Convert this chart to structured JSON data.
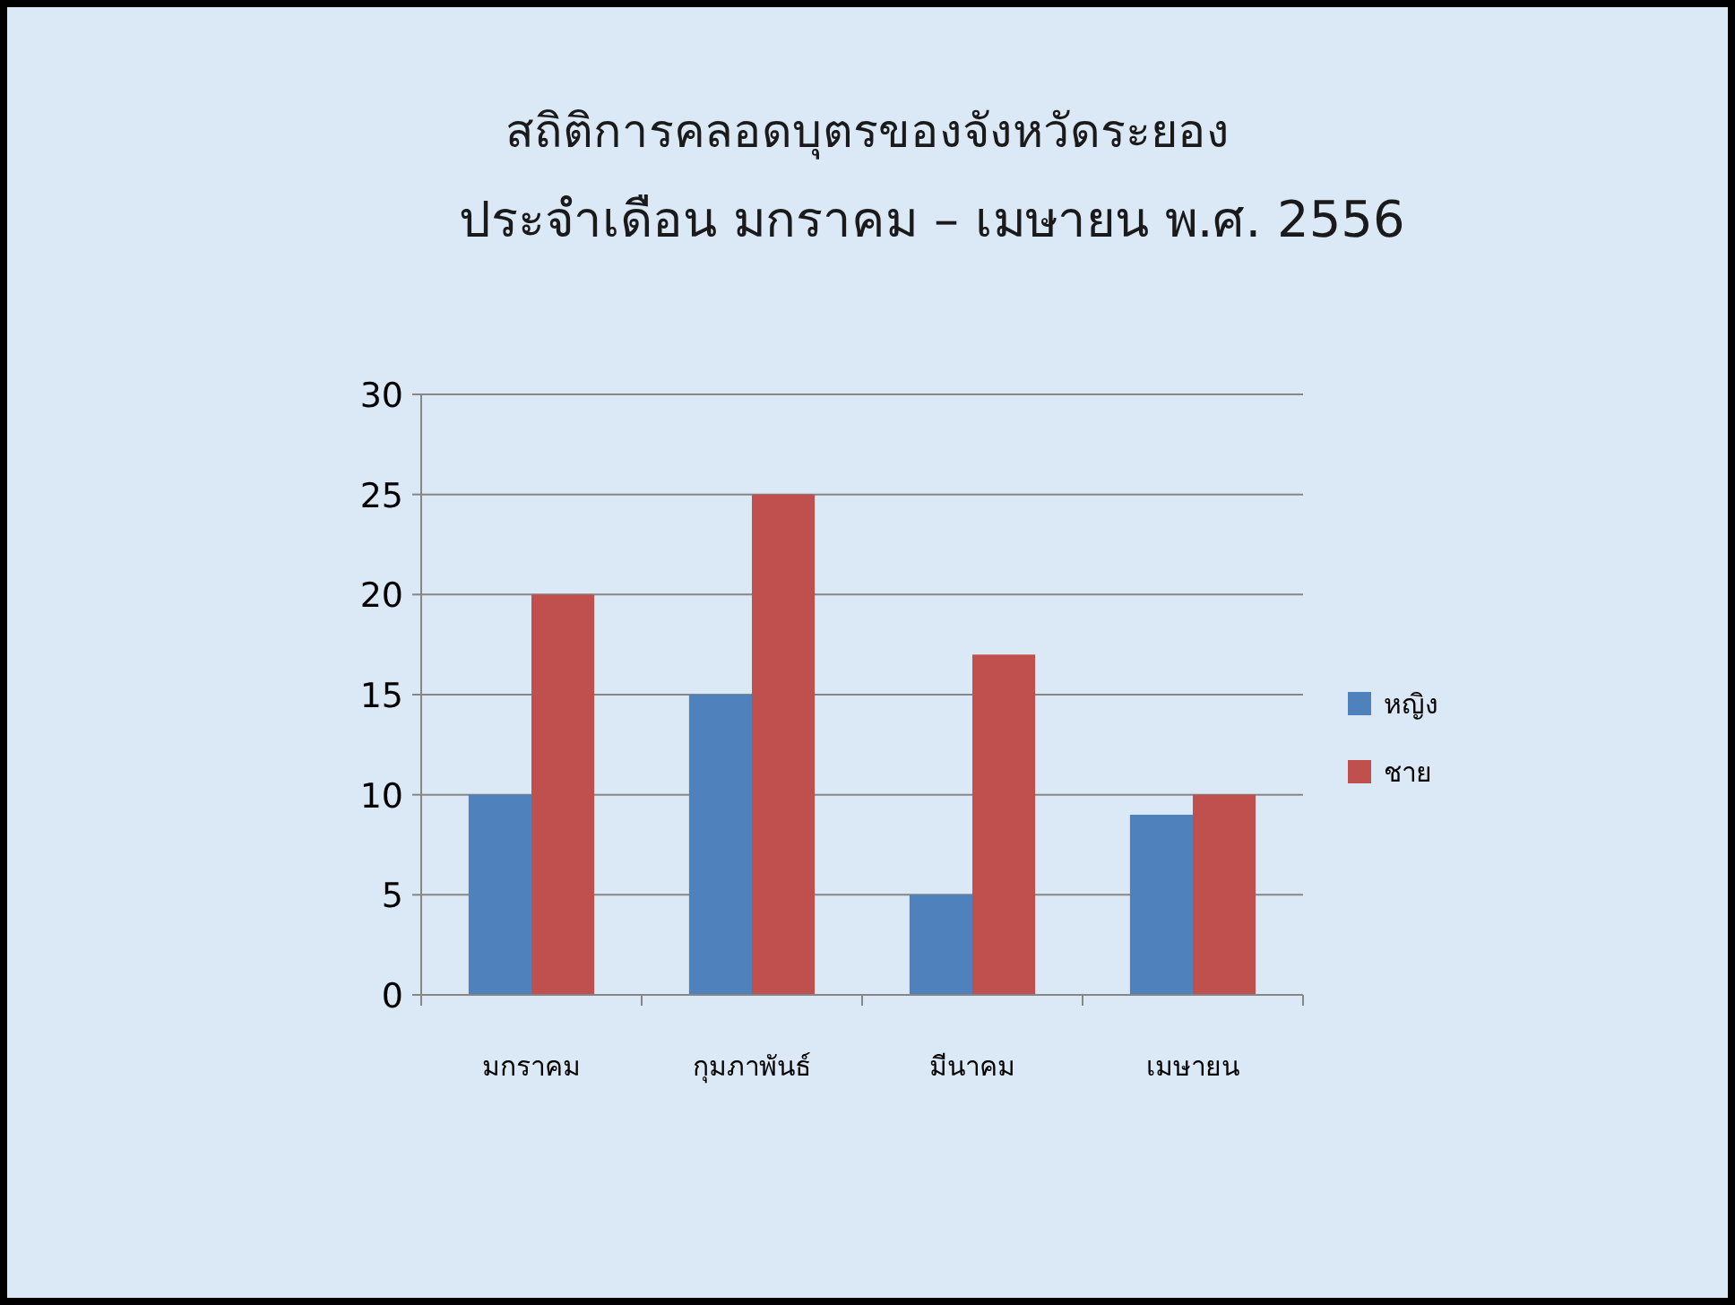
{
  "chart_data": {
    "type": "bar",
    "title": "สถิติการคลอดบุตรของจังหวัดระยอง",
    "subtitle": "ประจำเดือน มกราคม – เมษายน พ.ศ. 2556",
    "categories": [
      "มกราคม",
      "กุมภาพันธ์",
      "มีนาคม",
      "เมษายน"
    ],
    "series": [
      {
        "name": "หญิง",
        "color": "#4f81bd",
        "values": [
          10,
          15,
          5,
          9
        ]
      },
      {
        "name": "ชาย",
        "color": "#c0504d",
        "values": [
          20,
          25,
          17,
          10
        ]
      }
    ],
    "ylim": [
      0,
      30
    ],
    "yticks": [
      0,
      5,
      10,
      15,
      20,
      25,
      30
    ],
    "grid": "y",
    "legend": "right"
  }
}
